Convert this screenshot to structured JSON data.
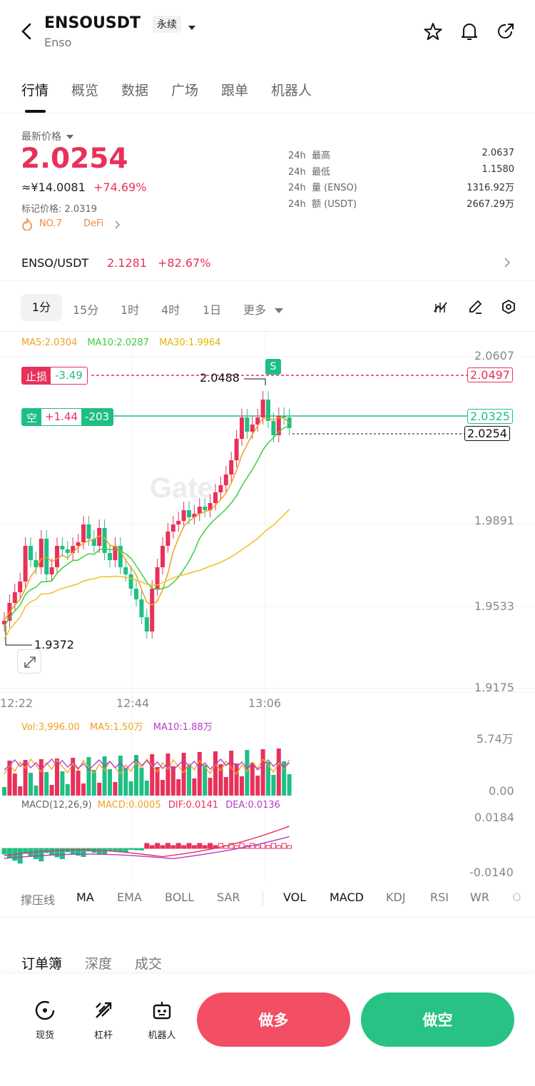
{
  "header": {
    "symbol": "ENSOUSDT",
    "name": "Enso",
    "contract_type": "永续"
  },
  "tabs": [
    "行情",
    "概览",
    "数据",
    "广场",
    "跟单",
    "机器人"
  ],
  "price": {
    "label": "最新价格",
    "last": "2.0254",
    "cny": "≈¥14.0081",
    "change": "+74.69%",
    "mark": "标记价格: 2.0319",
    "rank": "NO.7",
    "sector": "DeFi"
  },
  "stats": [
    {
      "period": "24h",
      "label": "最高",
      "value": "2.0637"
    },
    {
      "period": "24h",
      "label": "最低",
      "value": "1.1580"
    },
    {
      "period": "24h",
      "label": "量 (ENSO)",
      "value": "1316.92万"
    },
    {
      "period": "24h",
      "label": "额 (USDT)",
      "value": "2667.29万"
    }
  ],
  "spot": {
    "pair": "ENSO/USDT",
    "price": "2.1281",
    "change": "+82.67%"
  },
  "intervals": [
    "1分",
    "15分",
    "1时",
    "4时",
    "1日",
    "更多"
  ],
  "chart": {
    "ma5": "MA5:2.0304",
    "ma10": "MA10:2.0287",
    "ma30": "MA30:1.9964",
    "stop_label": "止损",
    "stop_pnl": "-3.49",
    "stop_price": "2.0497",
    "pos_label": "空",
    "pos_pnl": "+1.44",
    "pos_qty": "-203",
    "pos_price": "2.0325",
    "last_price": "2.0254",
    "high_mark": "2.0488",
    "low_mark": "1.9372",
    "signal": "S",
    "watermark": "Gate",
    "y_ticks": [
      "2.0607",
      "1.9891",
      "1.9533",
      "1.9175"
    ],
    "x_ticks": [
      "12:22",
      "12:44",
      "13:06"
    ]
  },
  "volume": {
    "vol": "Vol:3,996.00",
    "ma5": "MA5:1.50万",
    "ma10": "MA10:1.88万",
    "top": "5.74万",
    "bottom": "0.00"
  },
  "macd": {
    "title": "MACD(12,26,9)",
    "macd": "MACD:0.0005",
    "dif": "DIF:0.0141",
    "dea": "DEA:0.0136",
    "top": "0.0184",
    "bottom": "-0.0140"
  },
  "indicators": [
    "撑压线",
    "MA",
    "EMA",
    "BOLL",
    "SAR",
    "VOL",
    "MACD",
    "KDJ",
    "RSI",
    "WR",
    "O"
  ],
  "book_tabs": [
    "订单簿",
    "深度",
    "成交"
  ],
  "bottom": {
    "spot": "现货",
    "leverage": "杠杆",
    "bot": "机器人",
    "long": "做多",
    "short": "做空"
  },
  "colors": {
    "up": "#e8315a",
    "down": "#1fbf84",
    "ma5": "#f0a020",
    "ma10": "#3ccf3c",
    "ma30": "#f0c020"
  }
}
